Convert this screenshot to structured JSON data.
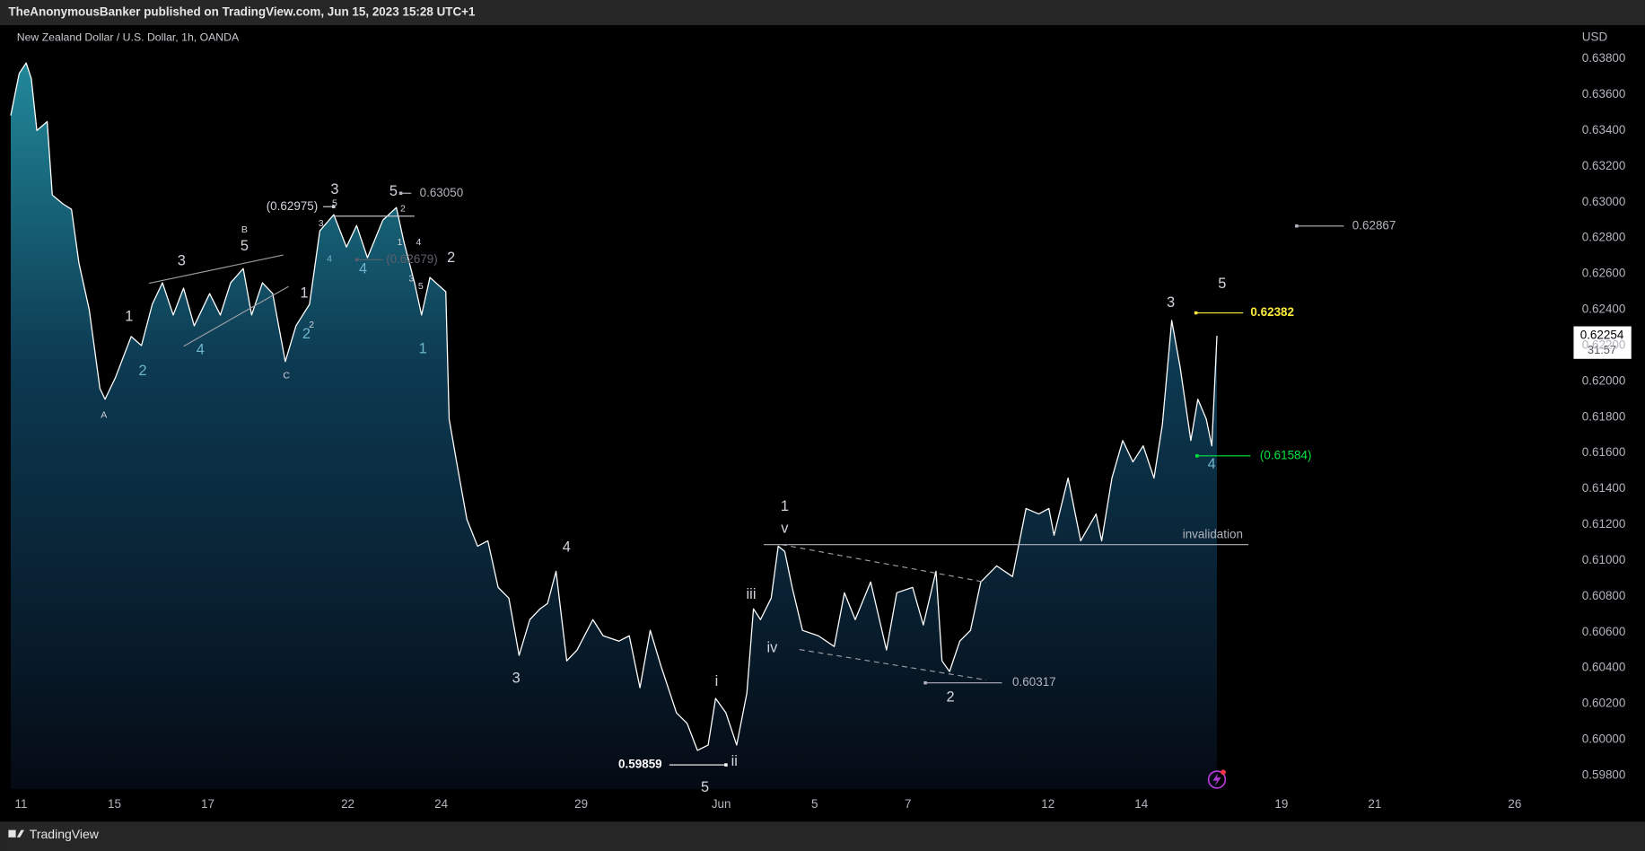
{
  "header": "TheAnonymousBanker published on TradingView.com, Jun 15, 2023 15:28 UTC+1",
  "footer": "TradingView",
  "chart_data": {
    "type": "area",
    "title": "New Zealand Dollar / U.S. Dollar, 1h, OANDA",
    "y_axis_label": "USD",
    "color": "#ffffff",
    "fill_top": "#2493a3",
    "fill_bottom": "#050a14",
    "grid": false,
    "x": [
      -0.22,
      -0.04,
      0.11,
      0.22,
      0.34,
      0.56,
      0.67,
      0.9,
      1.08,
      1.24,
      1.46,
      1.69,
      1.8,
      2.02,
      2.36,
      2.58,
      2.81,
      3.03,
      3.26,
      3.48,
      3.71,
      4.04,
      4.27,
      4.49,
      4.76,
      4.94,
      5.17,
      5.39,
      5.66,
      5.89,
      6.18,
      6.4,
      6.7,
      6.97,
      7.19,
      7.42,
      7.75,
      8.04,
      8.2,
      8.43,
      8.58,
      8.76,
      9.1,
      9.17,
      9.33,
      9.55,
      9.78,
      10.0,
      10.22,
      10.45,
      10.67,
      10.9,
      11.12,
      11.28,
      11.46,
      11.69,
      11.91,
      12.25,
      12.47,
      12.81,
      13.03,
      13.26,
      13.48,
      13.71,
      14.04,
      14.27,
      14.49,
      14.72,
      14.88,
      15.1,
      15.33,
      15.55,
      15.69,
      15.84,
      16.07,
      16.22,
      16.36,
      16.52,
      16.74,
      17.08,
      17.42,
      17.64,
      17.87,
      18.2,
      18.54,
      18.76,
      19.1,
      19.33,
      19.6,
      19.73,
      19.89,
      20.11,
      20.34,
      20.56,
      20.9,
      21.24,
      21.53,
      21.8,
      22.02,
      22.13,
      22.43,
      22.7,
      23.03,
      23.15,
      23.37,
      23.6,
      23.82,
      24.04,
      24.27,
      24.45,
      24.65,
      24.83,
      25.06,
      25.21,
      25.39,
      25.51,
      25.62
    ],
    "values": [
      0.63484,
      0.63718,
      0.63777,
      0.6369,
      0.634,
      0.6345,
      0.6304,
      0.6299,
      0.6296,
      0.6266,
      0.624,
      0.6196,
      0.619,
      0.6202,
      0.6225,
      0.622,
      0.6243,
      0.6255,
      0.6237,
      0.6252,
      0.6231,
      0.6249,
      0.6237,
      0.6255,
      0.6263,
      0.6237,
      0.6255,
      0.6249,
      0.6211,
      0.6231,
      0.6243,
      0.6284,
      0.6293,
      0.6275,
      0.6287,
      0.6269,
      0.629,
      0.6297,
      0.6278,
      0.6255,
      0.6237,
      0.6258,
      0.625,
      0.6179,
      0.6155,
      0.6123,
      0.6108,
      0.6111,
      0.6085,
      0.6079,
      0.6047,
      0.6067,
      0.6073,
      0.6076,
      0.6094,
      0.6044,
      0.605,
      0.6067,
      0.6058,
      0.6055,
      0.6058,
      0.6029,
      0.6061,
      0.6041,
      0.6015,
      0.6009,
      0.5994,
      0.5997,
      0.6023,
      0.6015,
      0.5997,
      0.6026,
      0.6073,
      0.6067,
      0.6079,
      0.6108,
      0.6105,
      0.6085,
      0.6061,
      0.6058,
      0.6052,
      0.6082,
      0.6067,
      0.6088,
      0.605,
      0.6082,
      0.6085,
      0.6064,
      0.6094,
      0.6044,
      0.6038,
      0.6055,
      0.6061,
      0.6088,
      0.6097,
      0.6091,
      0.6129,
      0.6126,
      0.6129,
      0.6114,
      0.6146,
      0.6111,
      0.6126,
      0.6111,
      0.6146,
      0.6167,
      0.6155,
      0.6164,
      0.6146,
      0.6176,
      0.6234,
      0.6208,
      0.6167,
      0.619,
      0.6179,
      0.6164,
      0.62254
    ],
    "xlim": [
      -0.225,
      33.26
    ],
    "xticks": [
      {
        "value": 0,
        "label": "11"
      },
      {
        "value": 2,
        "label": "15"
      },
      {
        "value": 4,
        "label": "17"
      },
      {
        "value": 7,
        "label": "22"
      },
      {
        "value": 9,
        "label": "24"
      },
      {
        "value": 12,
        "label": "29"
      },
      {
        "value": 15,
        "label": "Jun"
      },
      {
        "value": 17,
        "label": "5"
      },
      {
        "value": 19,
        "label": "7"
      },
      {
        "value": 22,
        "label": "12"
      },
      {
        "value": 24,
        "label": "14"
      },
      {
        "value": 27,
        "label": "19"
      },
      {
        "value": 29,
        "label": "21"
      },
      {
        "value": 32,
        "label": "26"
      }
    ],
    "ylim": [
      0.59724,
      0.63988
    ],
    "yticks": [
      {
        "value": 0.598,
        "label": "0.59800"
      },
      {
        "value": 0.6,
        "label": "0.60000"
      },
      {
        "value": 0.602,
        "label": "0.60200"
      },
      {
        "value": 0.604,
        "label": "0.60400"
      },
      {
        "value": 0.606,
        "label": "0.60600"
      },
      {
        "value": 0.608,
        "label": "0.60800"
      },
      {
        "value": 0.61,
        "label": "0.61000"
      },
      {
        "value": 0.612,
        "label": "0.61200"
      },
      {
        "value": 0.614,
        "label": "0.61400"
      },
      {
        "value": 0.616,
        "label": "0.61600"
      },
      {
        "value": 0.618,
        "label": "0.61800"
      },
      {
        "value": 0.62,
        "label": "0.62000"
      },
      {
        "value": 0.622,
        "label": "0.62200"
      },
      {
        "value": 0.624,
        "label": "0.62400"
      },
      {
        "value": 0.626,
        "label": "0.62600"
      },
      {
        "value": 0.628,
        "label": "0.62800"
      },
      {
        "value": 0.63,
        "label": "0.63000"
      },
      {
        "value": 0.632,
        "label": "0.63200"
      },
      {
        "value": 0.634,
        "label": "0.63400"
      },
      {
        "value": 0.636,
        "label": "0.63600"
      },
      {
        "value": 0.638,
        "label": "0.63800"
      }
    ],
    "last_price": {
      "value": 0.62254,
      "label": "0.62254"
    },
    "countdown": "31:57",
    "levels": [
      {
        "value": 0.6305,
        "label": "0.63050",
        "color": "#b2b5be"
      },
      {
        "value": 0.62975,
        "label": "(0.62975)",
        "color": "#d1d4dc"
      },
      {
        "value": 0.62867,
        "label": "0.62867",
        "color": "#b2b5be"
      },
      {
        "value": 0.62679,
        "label": "(0.62679)",
        "color": "#5d606b"
      },
      {
        "value": 0.62382,
        "label": "0.62382",
        "color": "#ffeb3b"
      },
      {
        "value": 0.61584,
        "label": "(0.61584)",
        "color": "#00e640"
      },
      {
        "value": 0.60317,
        "label": "0.60317",
        "color": "#b2b5be"
      },
      {
        "value": 0.59859,
        "label": "0.59859",
        "color": "#ffffff"
      }
    ],
    "annotations": [
      "1",
      "2",
      "3",
      "4",
      "5",
      "B",
      "A",
      "C",
      "1",
      "2",
      "2",
      "3",
      "5",
      "3",
      "4",
      "4",
      "5",
      "2",
      "1",
      "4",
      "3",
      "5",
      "2",
      "1",
      "4",
      "3",
      "5",
      "i",
      "ii",
      "iii",
      "iv",
      "v",
      "1",
      "2",
      "3",
      "5",
      "4",
      "invalidation"
    ]
  }
}
